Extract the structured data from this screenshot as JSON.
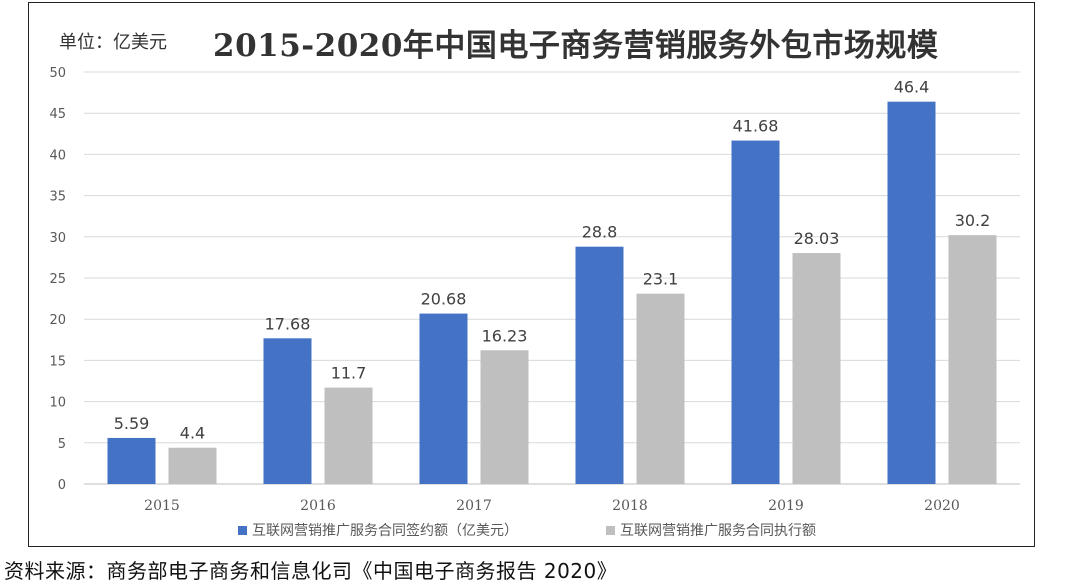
{
  "chart_data": {
    "type": "bar",
    "title": "2015-2020年中国电子商务营销服务外包市场规模",
    "unit": "单位：亿美元",
    "categories": [
      "2015",
      "2016",
      "2017",
      "2018",
      "2019",
      "2020"
    ],
    "series": [
      {
        "name": "互联网营销推广服务合同签约额（亿美元）",
        "color": "#4472C4",
        "values": [
          5.59,
          17.68,
          20.68,
          28.8,
          41.68,
          46.4
        ],
        "labels": [
          "5.59",
          "17.68",
          "20.68",
          "28.8",
          "41.68",
          "46.4"
        ]
      },
      {
        "name": "互联网营销推广服务合同执行额",
        "color": "#BFBFBF",
        "values": [
          4.4,
          11.7,
          16.23,
          23.1,
          28.03,
          30.2
        ],
        "labels": [
          "4.4",
          "11.7",
          "16.23",
          "23.1",
          "28.03",
          "30.2"
        ]
      }
    ],
    "ylim": [
      0,
      50
    ],
    "yticks": [
      "0",
      "5",
      "10",
      "15",
      "20",
      "25",
      "30",
      "35",
      "40",
      "45",
      "50"
    ],
    "grid": true,
    "legend": "bottom"
  },
  "source": "资料来源：商务部电子商务和信息化司《中国电子商务报告 2020》"
}
